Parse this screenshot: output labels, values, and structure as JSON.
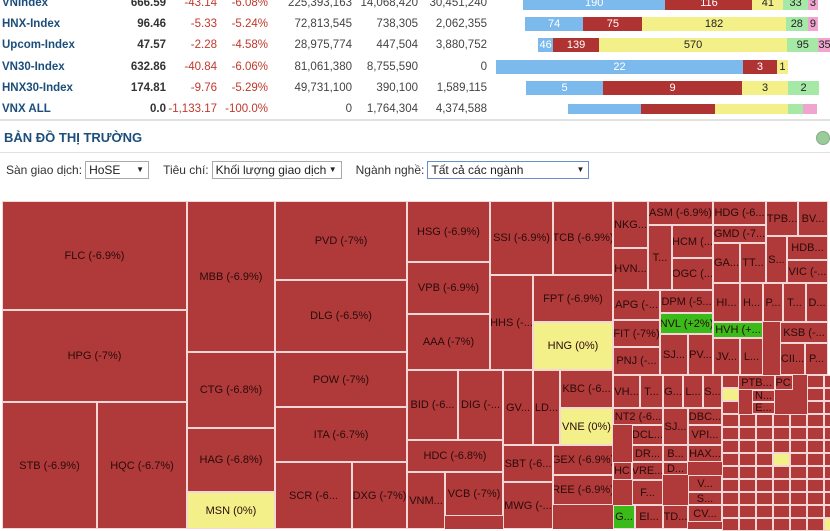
{
  "indices": [
    {
      "name": "VNIndex",
      "value": "666.59",
      "change": "-43.14",
      "pct": "-6.08%",
      "vol": "225,393,163",
      "v2": "14,068,420",
      "v3": "30,451,240",
      "bars": [
        {
          "c": "sb",
          "v": 190
        },
        {
          "c": "sr",
          "v": 116
        },
        {
          "c": "sy",
          "v": 41
        },
        {
          "c": "sg",
          "v": 33
        },
        {
          "c": "sp",
          "v": 3
        }
      ]
    },
    {
      "name": "HNX-Index",
      "value": "96.46",
      "change": "-5.33",
      "pct": "-5.24%",
      "vol": "72,813,545",
      "v2": "738,305",
      "v3": "2,062,355",
      "bars": [
        {
          "c": "sb",
          "v": 74
        },
        {
          "c": "sr",
          "v": 75
        },
        {
          "c": "sy",
          "v": 182
        },
        {
          "c": "sg",
          "v": 28
        },
        {
          "c": "sp",
          "v": 9
        }
      ]
    },
    {
      "name": "Upcom-Index",
      "value": "47.57",
      "change": "-2.28",
      "pct": "-4.58%",
      "vol": "28,975,774",
      "v2": "447,504",
      "v3": "3,880,752",
      "bars": [
        {
          "c": "sb",
          "v": 46
        },
        {
          "c": "sr",
          "v": 139
        },
        {
          "c": "sy",
          "v": 570
        },
        {
          "c": "sg",
          "v": 95
        },
        {
          "c": "sp",
          "v": 35
        }
      ]
    },
    {
      "name": "VN30-Index",
      "value": "632.86",
      "change": "-40.84",
      "pct": "-6.06%",
      "vol": "81,061,380",
      "v2": "8,755,590",
      "v3": "0",
      "bars": [
        {
          "c": "sb",
          "v": 22
        },
        {
          "c": "sr",
          "v": 3
        },
        {
          "c": "sy",
          "v": 1
        }
      ]
    },
    {
      "name": "HNX30-Index",
      "value": "174.81",
      "change": "-9.76",
      "pct": "-5.29%",
      "vol": "49,731,100",
      "v2": "390,100",
      "v3": "1,589,115",
      "bars": [
        {
          "c": "sb",
          "v": 5
        },
        {
          "c": "sr",
          "v": 9
        },
        {
          "c": "sy",
          "v": 3
        },
        {
          "c": "sg",
          "v": 2
        }
      ]
    },
    {
      "name": "VNX ALL",
      "value": "0.0",
      "change": "-1,133.17",
      "pct": "-100.0%",
      "vol": "0",
      "v2": "1,764,304",
      "v3": "4,374,588"
    }
  ],
  "section_title": "BẢN ĐỒ THỊ TRƯỜNG",
  "filters": {
    "exchange_label": "Sàn giao dịch:",
    "exchange": "HoSE",
    "criteria_label": "Tiêu chí:",
    "criteria": "Khối lượng giao dịch",
    "industry_label": "Ngành nghề:",
    "industry": "Tất cả các ngành"
  },
  "treemap": {
    "cells": [
      "FLC (-6.9%)",
      "HPG (-7%)",
      "STB (-6.9%)",
      "HQC (-6.7%)",
      "MBB (-6.9%)",
      "CTG (-6.8%)",
      "HAG (-6.8%)",
      "MSN (0%)",
      "PVD (-7%)",
      "DLG (-6.5%)",
      "POW (-7%)",
      "ITA (-6.7%)",
      "SCR (-6...",
      "DXG (-7%)",
      "HSG (-6.9%)",
      "VPB (-6.9%)",
      "AAA (-7%)",
      "BID (-6...",
      "DIG (-...",
      "HDC (-6.8%)",
      "VNM...",
      "VCB (-7%)",
      "SSI (-6.9%)",
      "TCB (-6.9%)",
      "HHS (-...",
      "FPT (-6.9%)",
      "HNG (0%)",
      "GV...",
      "LD...",
      "KBC (-6...",
      "VNE (0%)",
      "SBT (-6...",
      "GEX (-6.9%)",
      "MWG (-...",
      "REE (-6.9%)",
      "NKG...",
      "HVN...",
      "T...",
      "ASM (-6.9%)",
      "HCM (...",
      "OGC (...",
      "HDG (-6...",
      "GMD (-7...",
      "GA...",
      "TT...",
      "TPB...",
      "BV...",
      "S...",
      "HDB...",
      "VIC (-...",
      "APG (-...",
      "DPM (-5...",
      "NVL (+2%)",
      "FIT (-7%)",
      "SJ...",
      "PV...",
      "PNJ (-...",
      "HI...",
      "H...",
      "P...",
      "T...",
      "D...",
      "HVH (+...",
      "JV...",
      "L...",
      "KSB (-...",
      "CII...",
      "P...",
      "VH...",
      "T...",
      "G...",
      "L...",
      "S...",
      "NT2 (-6...",
      "DCL...",
      "DR...",
      "SJ...",
      "DBC...",
      "VPI...",
      "B...",
      "HAX...",
      "VRE...",
      "D...",
      "DHC...",
      "F...",
      "V...",
      "S...",
      "G...",
      "EI...",
      "TD...",
      "CV...",
      "PTB...",
      "PPC...",
      "N...",
      "E...",
      "F..."
    ]
  }
}
